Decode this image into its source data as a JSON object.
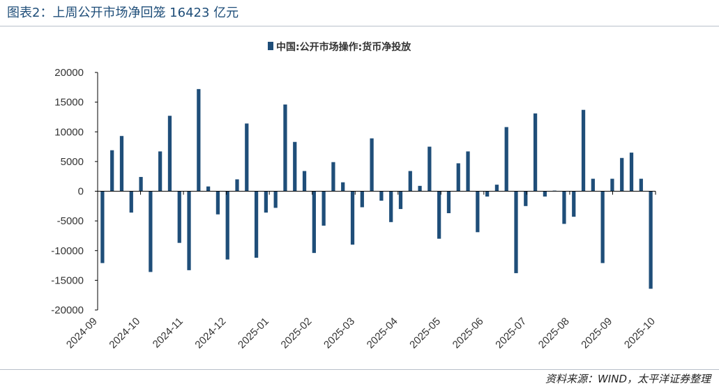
{
  "figure": {
    "title": "图表2：上周公开市场净回笼 16423 亿元",
    "source": "资料来源：WIND，太平洋证券整理"
  },
  "colors": {
    "bar": "#1f4e79",
    "title": "#1f4e79",
    "axis": "#000000"
  },
  "chart_data": {
    "type": "bar",
    "title": "",
    "xlabel": "",
    "ylabel": "",
    "ylim": [
      -20000,
      20000
    ],
    "yticks": [
      20000,
      15000,
      10000,
      5000,
      0,
      -5000,
      -10000,
      -15000,
      -20000
    ],
    "xticks": [
      "2024-09",
      "2024-10",
      "2024-11",
      "2024-12",
      "2025-01",
      "2025-02",
      "2025-03",
      "2025-04",
      "2025-05",
      "2025-06",
      "2025-07",
      "2025-08",
      "2025-09",
      "2025-10"
    ],
    "legend": {
      "position": "top-center",
      "entries": [
        "中国:公开市场操作:货币净投放"
      ]
    },
    "grid": false,
    "series": [
      {
        "name": "中国:公开市场操作:货币净投放",
        "values": [
          -12100,
          6900,
          9300,
          -3600,
          2400,
          -13600,
          6700,
          12700,
          -8700,
          -13300,
          17200,
          800,
          -3900,
          -11500,
          2000,
          11400,
          -11200,
          -3600,
          -2800,
          14600,
          8300,
          3400,
          -10400,
          -5800,
          4900,
          1500,
          -9000,
          -2700,
          8900,
          -1600,
          -5200,
          -3000,
          3400,
          900,
          7500,
          -8000,
          -3700,
          4700,
          6700,
          -6900,
          -900,
          1100,
          10800,
          -13800,
          -2500,
          13100,
          -900,
          100,
          -5500,
          -4300,
          13700,
          2100,
          -12100,
          2100,
          5600,
          6500,
          2100,
          -16423
        ]
      }
    ]
  }
}
